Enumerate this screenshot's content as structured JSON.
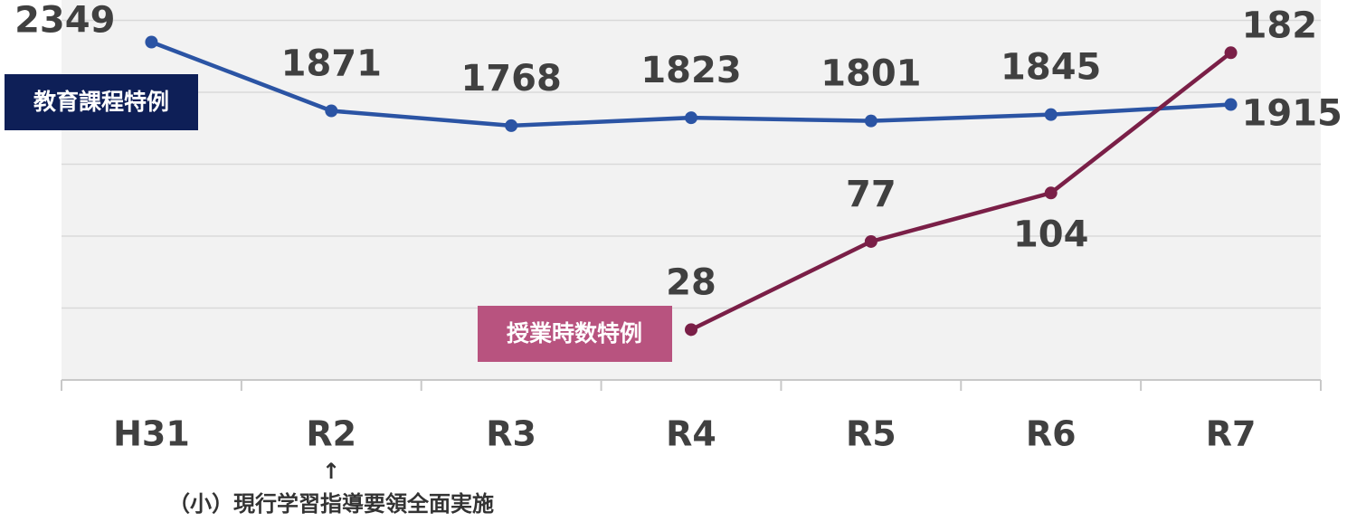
{
  "chart_data": {
    "type": "line",
    "categories": [
      "H31",
      "R2",
      "R3",
      "R4",
      "R5",
      "R6",
      "R7"
    ],
    "series": [
      {
        "name": "教育課程特例",
        "color": "#2b54a4",
        "values": [
          2349,
          1871,
          1768,
          1823,
          1801,
          1845,
          1915
        ]
      },
      {
        "name": "授業時数特例",
        "color": "#7a1f47",
        "axis": "y2",
        "values": [
          null,
          null,
          null,
          28,
          77,
          104,
          182
        ]
      }
    ],
    "ylim": [
      0,
      2500
    ],
    "yticks": [
      0,
      500,
      1000,
      1500,
      2000,
      2500
    ],
    "y2lim": [
      0,
      200
    ],
    "y2ticks": [
      0,
      40,
      80,
      120,
      160,
      200
    ],
    "grid": true,
    "annotations": [
      "↑",
      "（小）現行学習指導要領全面実施"
    ]
  }
}
